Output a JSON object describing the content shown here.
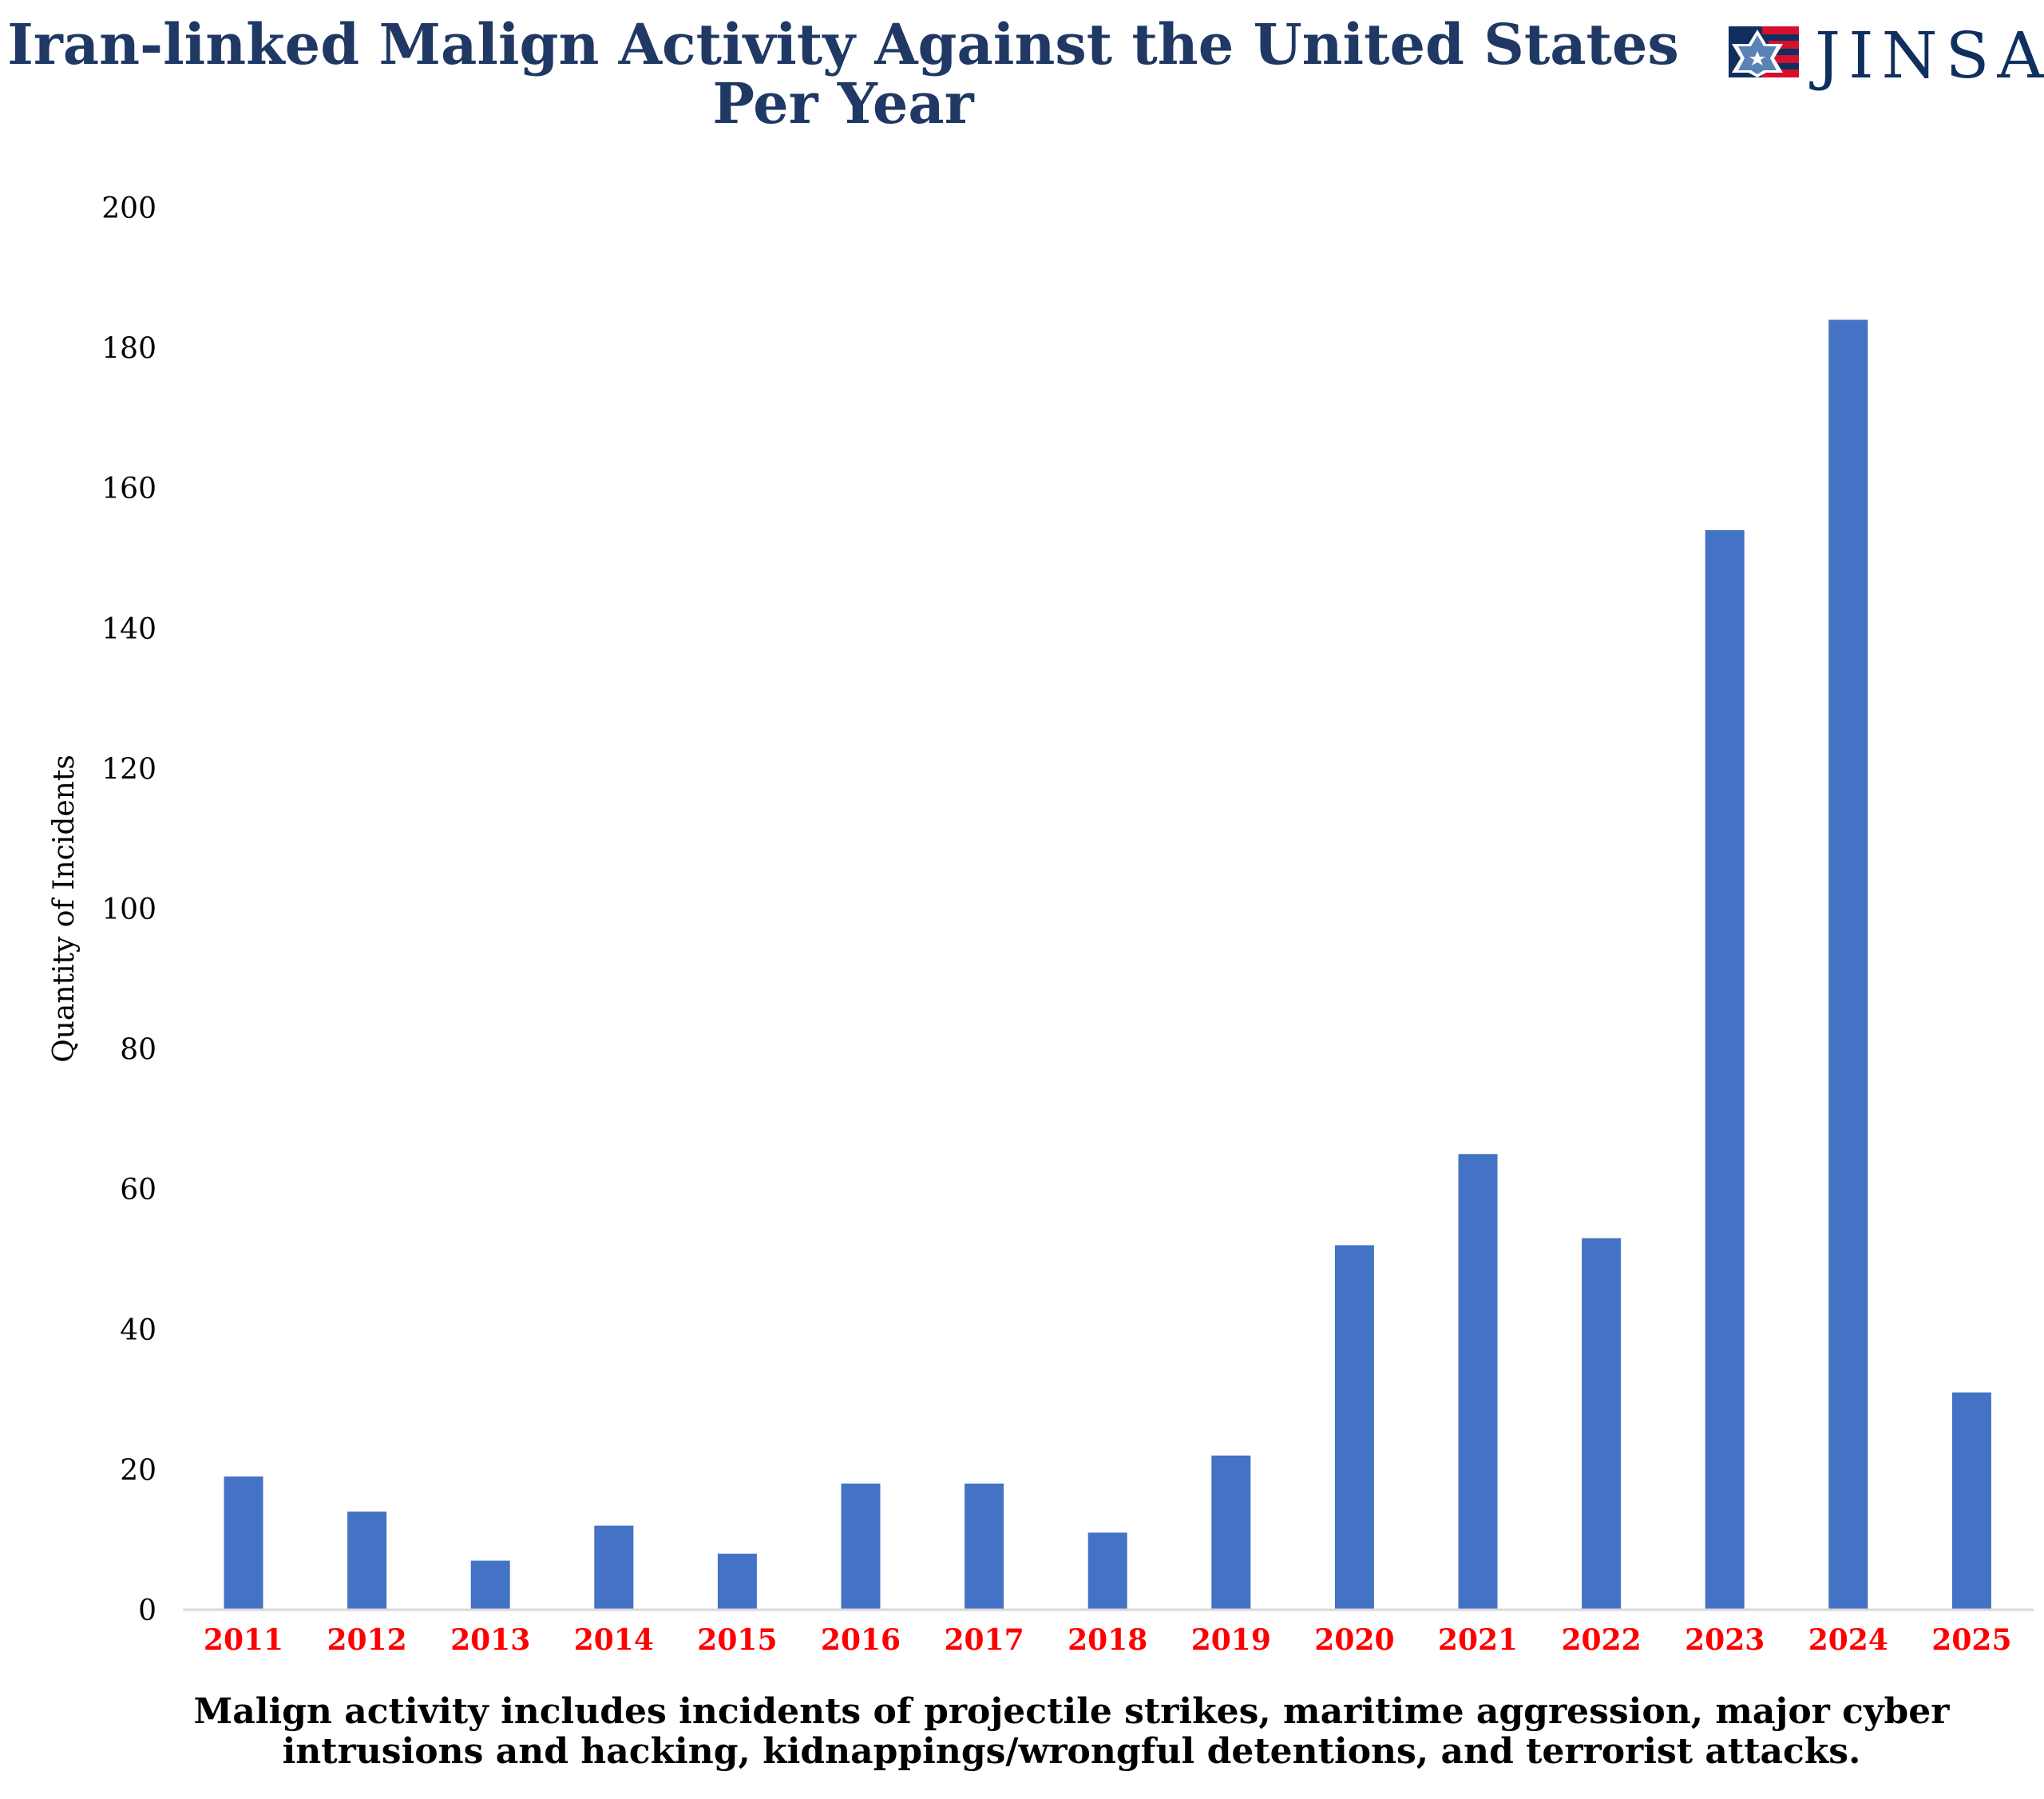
{
  "logo": {
    "text": "JINSA",
    "colors": {
      "navy": "#0f2f5e",
      "red": "#d7102e",
      "star": "#5a82b4"
    }
  },
  "chart_data": {
    "type": "bar",
    "title": "Iran-linked Malign Activity Against the United States Per Year",
    "title_lines": [
      "Iran-linked Malign Activity Against the United States",
      "Per Year"
    ],
    "xlabel": "",
    "ylabel": "Quantity of Incidents",
    "categories": [
      "2011",
      "2012",
      "2013",
      "2014",
      "2015",
      "2016",
      "2017",
      "2018",
      "2019",
      "2020",
      "2021",
      "2022",
      "2023",
      "2024",
      "2025"
    ],
    "values": [
      19,
      14,
      7,
      12,
      8,
      18,
      18,
      11,
      22,
      52,
      65,
      53,
      154,
      184,
      31
    ],
    "ylim": [
      0,
      200
    ],
    "yticks": [
      0,
      20,
      40,
      60,
      80,
      100,
      120,
      140,
      160,
      180,
      200
    ],
    "grid": false,
    "legend": "none",
    "colors": {
      "bar": "#4472c4",
      "title": "#1f3864",
      "xtick": "#ff0000",
      "text": "#000000"
    },
    "footnote_lines": [
      "Malign activity includes incidents of projectile strikes, maritime aggression, major cyber",
      "intrusions and hacking, kidnappings/wrongful detentions, and terrorist attacks."
    ]
  }
}
